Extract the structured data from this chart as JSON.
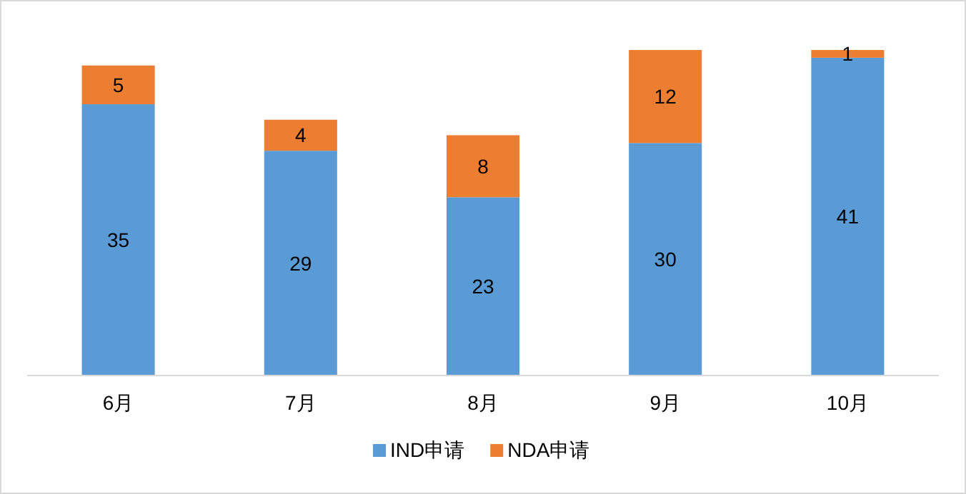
{
  "chart_data": {
    "type": "bar",
    "stacked": true,
    "categories": [
      "6月",
      "7月",
      "8月",
      "9月",
      "10月"
    ],
    "series": [
      {
        "name": "IND申请",
        "color": "#5b9bd5",
        "values": [
          35,
          29,
          23,
          30,
          41
        ]
      },
      {
        "name": "NDA申请",
        "color": "#ed7d31",
        "values": [
          5,
          4,
          8,
          12,
          1
        ]
      }
    ],
    "data_labels": true,
    "legend": "bottom"
  }
}
